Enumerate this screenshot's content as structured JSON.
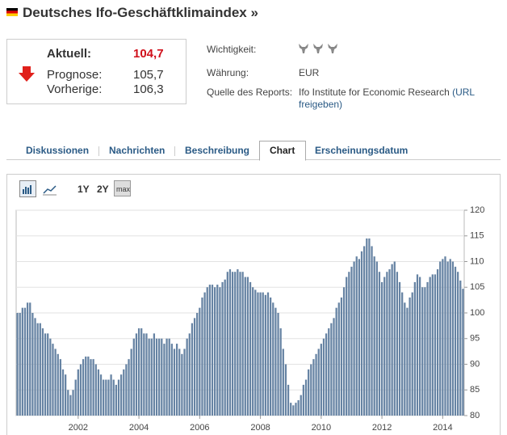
{
  "header": {
    "title": "Deutsches Ifo-Geschäftklimaindex »"
  },
  "summary": {
    "current_label": "Aktuell:",
    "current": "104,7",
    "forecast_label": "Prognose:",
    "forecast": "105,7",
    "previous_label": "Vorherige:",
    "previous": "106,3"
  },
  "details": {
    "importance_label": "Wichtigkeit:",
    "currency_label": "Währung:",
    "currency": "EUR",
    "source_label": "Quelle des Reports:",
    "source": "Ifo Institute for Economic Research",
    "source_link": "(URL freigeben)"
  },
  "tabs": [
    "Diskussionen",
    "Nachrichten",
    "Beschreibung",
    "Chart",
    "Erscheinungsdatum"
  ],
  "toolbar": [
    "1Y",
    "2Y",
    "max"
  ],
  "chart_data": {
    "type": "bar",
    "color": "#6683a3",
    "grid": true,
    "ylim": [
      80,
      120
    ],
    "yticks": [
      80,
      85,
      90,
      95,
      100,
      105,
      110,
      115,
      120
    ],
    "categories": [
      null,
      null,
      null,
      null,
      null,
      null,
      null,
      null,
      null,
      null,
      null,
      null,
      null,
      null,
      null,
      null,
      null,
      null,
      null,
      null,
      null,
      null,
      null,
      null,
      "2002",
      null,
      null,
      null,
      null,
      null,
      null,
      null,
      null,
      null,
      null,
      null,
      null,
      null,
      null,
      null,
      null,
      null,
      null,
      null,
      null,
      null,
      null,
      null,
      "2004",
      null,
      null,
      null,
      null,
      null,
      null,
      null,
      null,
      null,
      null,
      null,
      null,
      null,
      null,
      null,
      null,
      null,
      null,
      null,
      null,
      null,
      null,
      null,
      "2006",
      null,
      null,
      null,
      null,
      null,
      null,
      null,
      null,
      null,
      null,
      null,
      null,
      null,
      null,
      null,
      null,
      null,
      null,
      null,
      null,
      null,
      null,
      null,
      "2008",
      null,
      null,
      null,
      null,
      null,
      null,
      null,
      null,
      null,
      null,
      null,
      null,
      null,
      null,
      null,
      null,
      null,
      null,
      null,
      null,
      null,
      null,
      null,
      "2010",
      null,
      null,
      null,
      null,
      null,
      null,
      null,
      null,
      null,
      null,
      null,
      null,
      null,
      null,
      null,
      null,
      null,
      null,
      null,
      null,
      null,
      null,
      null,
      "2012",
      null,
      null,
      null,
      null,
      null,
      null,
      null,
      null,
      null,
      null,
      null,
      null,
      null,
      null,
      null,
      null,
      null,
      null,
      null,
      null,
      null,
      null,
      null,
      "2014",
      null,
      null,
      null,
      null,
      null,
      null,
      null,
      null
    ],
    "values": [
      100,
      100,
      101,
      101,
      102,
      102,
      100,
      99,
      98,
      98,
      97,
      96,
      96,
      95,
      94,
      93,
      92,
      91,
      89,
      88,
      85,
      84,
      85,
      87,
      89,
      90,
      91,
      91.5,
      91.5,
      91,
      91,
      90,
      89,
      88,
      87,
      87,
      87,
      88,
      87,
      86,
      87,
      88,
      89,
      90,
      91,
      93,
      95,
      96,
      97,
      97,
      96,
      96,
      95,
      95,
      96,
      95,
      95,
      95,
      94,
      95,
      95,
      94,
      93,
      94,
      93,
      92,
      93,
      95,
      96,
      98,
      99,
      100,
      101,
      103,
      104,
      105,
      105.5,
      105.5,
      105,
      105.5,
      105,
      106,
      106.5,
      108,
      108.5,
      108,
      108,
      108.5,
      108,
      108,
      107,
      107,
      106,
      105,
      104.5,
      104,
      104,
      104,
      103.5,
      104,
      103,
      102,
      101,
      100,
      97,
      93,
      90,
      86,
      82.5,
      82,
      82.5,
      83,
      84,
      86,
      87,
      89,
      90,
      91,
      92,
      93,
      94,
      95,
      96,
      97,
      98,
      99,
      101,
      102,
      103,
      105,
      107,
      108,
      109,
      110,
      111,
      110.5,
      112,
      113,
      114.5,
      114.5,
      113,
      111,
      110,
      108,
      106,
      107,
      108,
      108.5,
      109.5,
      110,
      108,
      106,
      104,
      102,
      101,
      103,
      104,
      106,
      107.5,
      107,
      105,
      105,
      106,
      107,
      107.5,
      107.5,
      108.5,
      110,
      110.5,
      111,
      110,
      110.5,
      110,
      109,
      108,
      106.3,
      104.7
    ]
  }
}
